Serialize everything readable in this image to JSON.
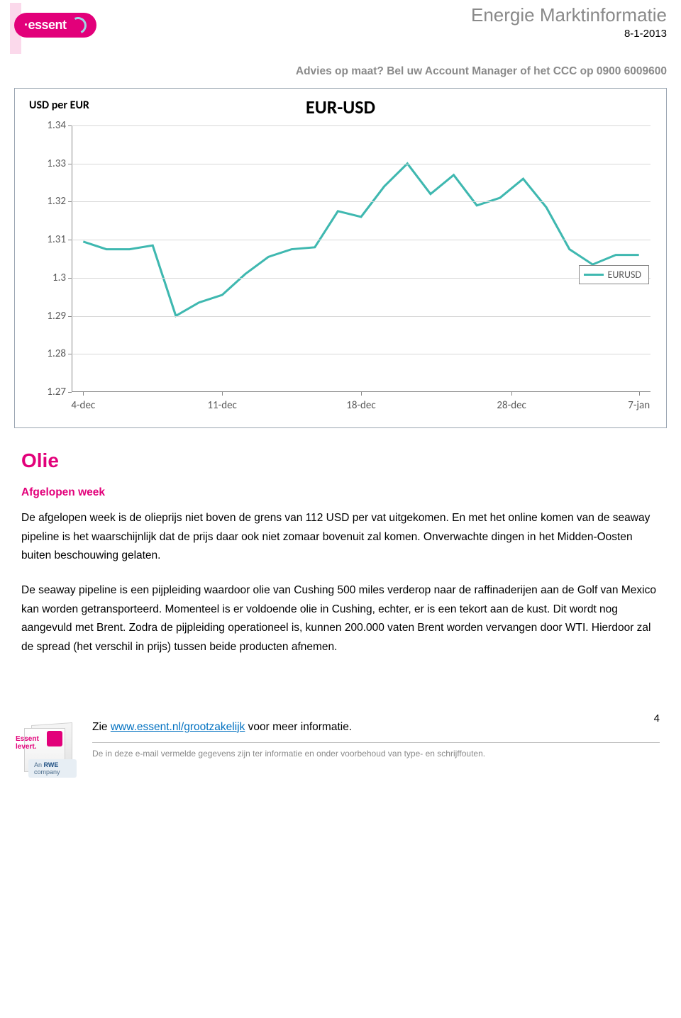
{
  "header": {
    "brand": "·essent",
    "doc_title": "Energie Marktinformatie",
    "doc_date": "8-1-2013",
    "advice_line": "Advies op maat? Bel uw Account Manager of het CCC op 0900 6009600"
  },
  "chart": {
    "type": "line",
    "title": "EUR-USD",
    "y_label": "USD per EUR",
    "line_color": "#3fb8b0",
    "grid_color": "#d8d8d8",
    "axis_color": "#888888",
    "tick_font_color": "#595959",
    "background_color": "#ffffff",
    "line_width": 3,
    "ylim": [
      1.27,
      1.34
    ],
    "ytick_step": 0.01,
    "yticks": [
      "1.27",
      "1.28",
      "1.29",
      "1.3",
      "1.31",
      "1.32",
      "1.33",
      "1.34"
    ],
    "xticks": [
      {
        "label": "4-dec",
        "pos": 0.02
      },
      {
        "label": "11-dec",
        "pos": 0.26
      },
      {
        "label": "18-dec",
        "pos": 0.5
      },
      {
        "label": "28-dec",
        "pos": 0.76
      },
      {
        "label": "7-jan",
        "pos": 0.98
      }
    ],
    "legend_label": "EURUSD",
    "values": [
      1.3095,
      1.3075,
      1.3075,
      1.3085,
      1.29,
      1.2935,
      1.2955,
      1.301,
      1.3055,
      1.3075,
      1.308,
      1.3175,
      1.316,
      1.324,
      1.33,
      1.322,
      1.327,
      1.319,
      1.321,
      1.326,
      1.3185,
      1.3075,
      1.3035,
      1.306,
      1.306
    ]
  },
  "article": {
    "section_title": "Olie",
    "sub_title": "Afgelopen week",
    "para1": "De afgelopen week is de olieprijs niet boven de grens van 112 USD per vat uitgekomen. En met het online komen van de seaway pipeline is het waarschijnlijk dat de prijs daar ook niet zomaar bovenuit zal komen. Onverwachte dingen in het Midden-Oosten buiten beschouwing gelaten.",
    "para2": "De seaway pipeline is een pijpleiding waardoor olie van Cushing 500 miles verderop naar de raffinaderijen aan de Golf van Mexico kan worden getransporteerd. Momenteel is er voldoende olie in Cushing, echter, er is een tekort aan de kust. Dit wordt nog aangevuld met Brent. Zodra de pijpleiding operationeel is, kunnen 200.000 vaten Brent worden vervangen door WTI. Hierdoor zal de spread (het verschil in prijs) tussen beide producten afnemen."
  },
  "footer": {
    "page_number": "4",
    "link_prefix": "Zie ",
    "link_text": "www.essent.nl/grootzakelijk",
    "link_suffix": " voor meer informatie.",
    "disclaimer": "De in deze e-mail vermelde gegevens zijn ter informatie en onder voorbehoud van type- en schrijffouten.",
    "box_line1": "Essent",
    "box_line2": "levert.",
    "rwe_prefix": "An ",
    "rwe_brand": "RWE",
    "rwe_suffix": " company"
  }
}
